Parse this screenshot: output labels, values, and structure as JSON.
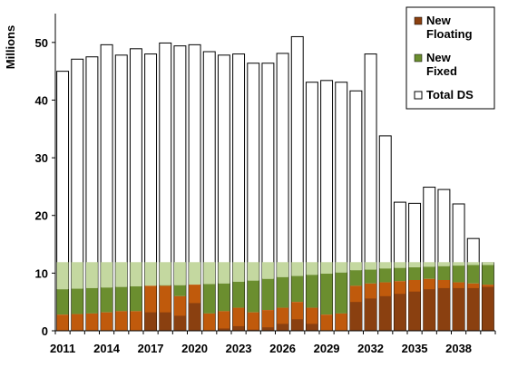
{
  "chart_data": {
    "type": "bar",
    "ylabel": "Millions",
    "ylim": [
      0,
      55
    ],
    "y_ticks": [
      0,
      10,
      20,
      30,
      40,
      50
    ],
    "x_tick_labels": [
      "2011",
      "2014",
      "2017",
      "2020",
      "2023",
      "2026",
      "2029",
      "2032",
      "2035",
      "2038"
    ],
    "categories": [
      2011,
      2012,
      2013,
      2014,
      2015,
      2016,
      2017,
      2018,
      2019,
      2020,
      2021,
      2022,
      2023,
      2024,
      2025,
      2026,
      2027,
      2028,
      2029,
      2030,
      2031,
      2032,
      2033,
      2034,
      2035,
      2036,
      2037,
      2038,
      2039,
      2040
    ],
    "legend_position": "top-right",
    "legend": [
      "New Floating",
      "New Fixed",
      "Total DS"
    ],
    "colors": {
      "floating": "#c05a0c",
      "floating_dark": "#8a4010",
      "fixed": "#6b8e2f",
      "fixed_light": "#c4d8a0",
      "total": "#ffffff"
    },
    "series": [
      {
        "name": "Total DS",
        "values": [
          45.0,
          47.1,
          47.5,
          49.6,
          47.8,
          48.9,
          48.0,
          49.9,
          49.4,
          49.6,
          48.4,
          47.8,
          48.0,
          46.4,
          46.4,
          48.1,
          51.0,
          43.1,
          43.4,
          43.1,
          41.6,
          48.0,
          33.8,
          22.3,
          22.1,
          24.9,
          24.5,
          22.0,
          16.0,
          11.8
        ]
      },
      {
        "name": "New Floating",
        "values": [
          2.8,
          2.9,
          3.0,
          3.2,
          3.4,
          3.4,
          7.8,
          7.8,
          6.0,
          8.0,
          3.0,
          3.4,
          4.0,
          3.2,
          3.6,
          4.0,
          5.0,
          4.0,
          2.8,
          3.0,
          7.8,
          8.2,
          8.4,
          8.6,
          8.8,
          9.0,
          8.8,
          8.4,
          8.2,
          8.0
        ]
      },
      {
        "name": "New Fixed",
        "values": [
          7.2,
          7.3,
          7.4,
          7.5,
          7.6,
          7.7,
          7.8,
          7.9,
          7.9,
          8.0,
          8.1,
          8.2,
          8.5,
          8.7,
          9.0,
          9.3,
          9.5,
          9.7,
          9.9,
          10.1,
          10.5,
          10.6,
          10.8,
          10.9,
          11.0,
          11.1,
          11.2,
          11.3,
          11.4,
          11.4
        ]
      }
    ],
    "floating_dark_segment": [
      0,
      0,
      0,
      0,
      0,
      0,
      3.2,
      3.2,
      2.6,
      4.8,
      0,
      0.4,
      0.8,
      0.2,
      0.6,
      1.2,
      2.0,
      1.2,
      0,
      0,
      5.0,
      5.6,
      6.0,
      6.4,
      6.8,
      7.2,
      7.4,
      7.4,
      7.4,
      7.6
    ],
    "fixed_light_ceiling": 11.9
  }
}
